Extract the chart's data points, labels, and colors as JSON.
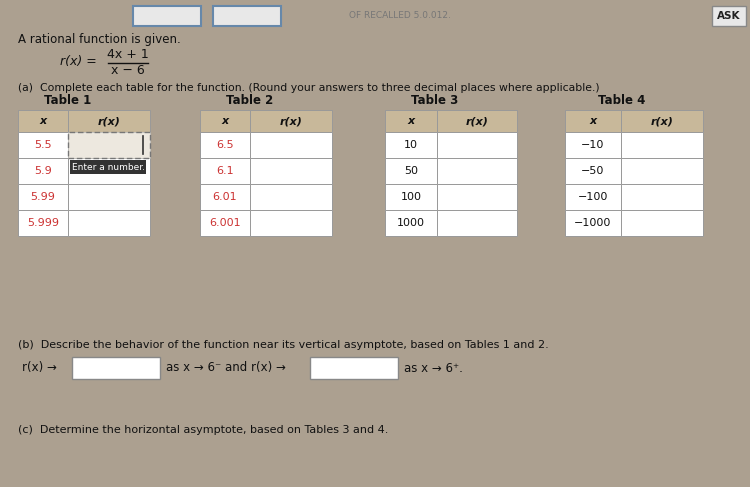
{
  "title_line1": "A rational function is given.",
  "formula_numerator": "4x + 1",
  "formula_denominator": "x − 6",
  "part_a_text": "(a)  Complete each table for the function. (Round your answers to three decimal places where applicable.)",
  "table_headers": [
    "Table 1",
    "Table 2",
    "Table 3",
    "Table 4"
  ],
  "table1_x": [
    "5.5",
    "5.9",
    "5.99",
    "5.999"
  ],
  "table2_x": [
    "6.5",
    "6.1",
    "6.01",
    "6.001"
  ],
  "table3_x": [
    "10",
    "50",
    "100",
    "1000"
  ],
  "table4_x": [
    "−10",
    "−50",
    "−100",
    "−1000"
  ],
  "x_col_color_red": "#cc3333",
  "x_col_color_black": "#111111",
  "header_bg": "#c8b89a",
  "cell_bg": "#ffffff",
  "table_border_color": "#999999",
  "bg_color": "#aca090",
  "part_b_text": "(b)  Describe the behavior of the function near its vertical asymptote, based on Tables 1 and 2.",
  "part_b_line2a": "r(x) →",
  "part_b_line2b": "as x → 6⁻ and r(x) →",
  "part_b_line2c": "as x → 6⁺.",
  "part_c_text": "(c)  Determine the horizontal asymptote, based on Tables 3 and 4.",
  "enter_tooltip": "Enter a number.",
  "tooltip_bg": "#333333",
  "tooltip_text_color": "#ffffff",
  "ask_text": "ASK",
  "figsize": [
    7.5,
    4.87
  ],
  "dpi": 100
}
